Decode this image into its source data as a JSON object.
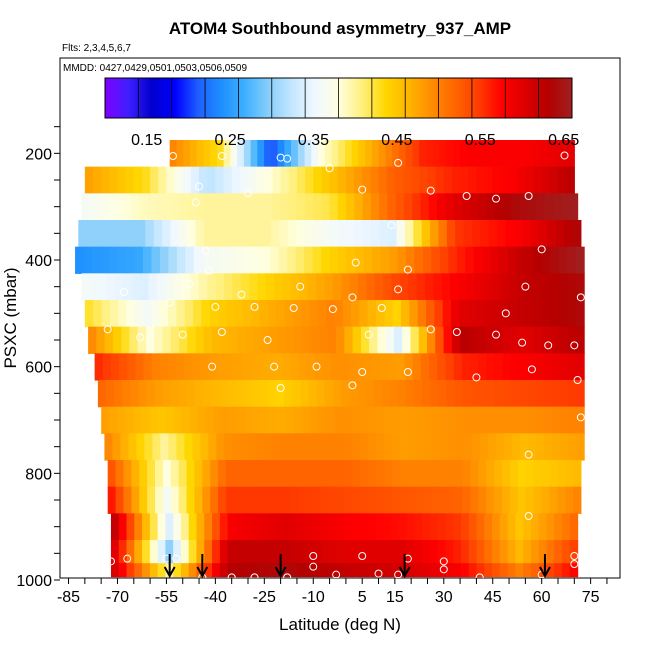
{
  "chart_data": {
    "type": "heatmap",
    "title": "ATOM4 Southbound asymmetry_937_AMP",
    "flights_label": "Flts: 2,3,4,5,6,7",
    "dates_label": "MMDD: 0427,0429,0501,0503,0506,0509",
    "xlabel": "Latitude (deg N)",
    "ylabel": "PSXC (mbar)",
    "xlim": [
      -87,
      84
    ],
    "ylim": [
      1000,
      100
    ],
    "x_ticks": [
      -85,
      -70,
      -55,
      -40,
      -25,
      -10,
      5,
      15,
      30,
      45,
      60,
      75
    ],
    "y_ticks": [
      200,
      400,
      600,
      800,
      1000
    ],
    "colorbar": {
      "range": [
        0.1,
        0.66
      ],
      "ticks": [
        0.15,
        0.25,
        0.35,
        0.45,
        0.55,
        0.65
      ],
      "tick_labels": [
        "0.15",
        "0.25",
        "0.35",
        "0.45",
        "0.55",
        "0.65"
      ],
      "colors": [
        "#7f00ff",
        "#3f1fff",
        "#0000cd",
        "#0000ff",
        "#1e5fff",
        "#1e90ff",
        "#3fb0ff",
        "#87cefa",
        "#c3e6ff",
        "#f0f8ff",
        "#ffffe0",
        "#fff07f",
        "#ffd700",
        "#ffb400",
        "#ff8c00",
        "#ff6400",
        "#ff3c00",
        "#ff0000",
        "#dc0000",
        "#b40000",
        "#a02020"
      ]
    },
    "layers": [
      {
        "p": 200,
        "lat_min": -54,
        "lat_max": 70,
        "values": [
          0.5,
          0.43,
          0.2,
          0.38,
          0.47,
          0.56,
          0.58,
          0.58,
          0.6
        ]
      },
      {
        "p": 250,
        "lat_min": -80,
        "lat_max": 70,
        "values": [
          0.48,
          0.43,
          0.32,
          0.38,
          0.45,
          0.52,
          0.56,
          0.58,
          0.63
        ]
      },
      {
        "p": 300,
        "lat_min": -81,
        "lat_max": 71,
        "values": [
          0.36,
          0.39,
          0.4,
          0.4,
          0.42,
          0.52,
          0.6,
          0.64,
          0.66
        ]
      },
      {
        "p": 350,
        "lat_min": -82,
        "lat_max": 72,
        "values": [
          0.3,
          0.3,
          0.4,
          0.4,
          0.36,
          0.34,
          0.55,
          0.58,
          0.64
        ]
      },
      {
        "p": 400,
        "lat_min": -83,
        "lat_max": 73,
        "values": [
          0.24,
          0.26,
          0.36,
          0.38,
          0.44,
          0.48,
          0.56,
          0.62,
          0.66
        ]
      },
      {
        "p": 450,
        "lat_min": -81,
        "lat_max": 73,
        "values": [
          0.36,
          0.34,
          0.4,
          0.44,
          0.48,
          0.54,
          0.58,
          0.62,
          0.64
        ]
      },
      {
        "p": 500,
        "lat_min": -80,
        "lat_max": 73,
        "values": [
          0.43,
          0.36,
          0.44,
          0.47,
          0.5,
          0.44,
          0.6,
          0.62,
          0.64
        ]
      },
      {
        "p": 550,
        "lat_min": -79,
        "lat_max": 73,
        "values": [
          0.5,
          0.38,
          0.46,
          0.48,
          0.5,
          0.34,
          0.63,
          0.6,
          0.63
        ]
      },
      {
        "p": 600,
        "lat_min": -77,
        "lat_max": 73,
        "values": [
          0.56,
          0.5,
          0.48,
          0.47,
          0.49,
          0.48,
          0.56,
          0.58,
          0.6
        ]
      },
      {
        "p": 650,
        "lat_min": -76,
        "lat_max": 73,
        "values": [
          0.52,
          0.48,
          0.46,
          0.44,
          0.48,
          0.5,
          0.53,
          0.54,
          0.55
        ]
      },
      {
        "p": 700,
        "lat_min": -75,
        "lat_max": 73,
        "values": [
          0.48,
          0.45,
          0.48,
          0.47,
          0.49,
          0.48,
          0.49,
          0.49,
          0.5
        ]
      },
      {
        "p": 750,
        "lat_min": -74,
        "lat_max": 73,
        "values": [
          0.5,
          0.4,
          0.49,
          0.5,
          0.5,
          0.48,
          0.49,
          0.46,
          0.48
        ]
      },
      {
        "p": 800,
        "lat_min": -73,
        "lat_max": 72,
        "values": [
          0.54,
          0.38,
          0.52,
          0.52,
          0.52,
          0.5,
          0.5,
          0.44,
          0.46
        ]
      },
      {
        "p": 850,
        "lat_min": -73,
        "lat_max": 72,
        "values": [
          0.58,
          0.36,
          0.55,
          0.55,
          0.54,
          0.53,
          0.52,
          0.45,
          0.5
        ]
      },
      {
        "p": 900,
        "lat_min": -72,
        "lat_max": 71,
        "values": [
          0.64,
          0.34,
          0.58,
          0.6,
          0.58,
          0.57,
          0.55,
          0.45,
          0.52
        ]
      },
      {
        "p": 950,
        "lat_min": -72,
        "lat_max": 71,
        "values": [
          0.62,
          0.3,
          0.62,
          0.62,
          0.6,
          0.6,
          0.56,
          0.46,
          0.55
        ]
      },
      {
        "p": 987,
        "lat_min": -72,
        "lat_max": 71,
        "values": [
          0.62,
          0.4,
          0.63,
          0.64,
          0.62,
          0.61,
          0.58,
          0.5,
          0.58
        ]
      }
    ],
    "points": [
      {
        "lat": -53,
        "p": 205
      },
      {
        "lat": -38,
        "p": 205
      },
      {
        "lat": -20,
        "p": 208
      },
      {
        "lat": -18,
        "p": 210
      },
      {
        "lat": -5,
        "p": 228
      },
      {
        "lat": 16,
        "p": 218
      },
      {
        "lat": 67,
        "p": 204
      },
      {
        "lat": -45,
        "p": 262
      },
      {
        "lat": -30,
        "p": 275
      },
      {
        "lat": 5,
        "p": 268
      },
      {
        "lat": 26,
        "p": 270
      },
      {
        "lat": 37,
        "p": 280
      },
      {
        "lat": 46,
        "p": 285
      },
      {
        "lat": 56,
        "p": 280
      },
      {
        "lat": -46,
        "p": 292
      },
      {
        "lat": 14,
        "p": 335
      },
      {
        "lat": -43,
        "p": 383
      },
      {
        "lat": 60,
        "p": 380
      },
      {
        "lat": -42,
        "p": 420
      },
      {
        "lat": 3,
        "p": 405
      },
      {
        "lat": 19,
        "p": 418
      },
      {
        "lat": -68,
        "p": 460
      },
      {
        "lat": -48,
        "p": 445
      },
      {
        "lat": -32,
        "p": 465
      },
      {
        "lat": -14,
        "p": 450
      },
      {
        "lat": 2,
        "p": 470
      },
      {
        "lat": 16,
        "p": 455
      },
      {
        "lat": 55,
        "p": 450
      },
      {
        "lat": 72,
        "p": 470
      },
      {
        "lat": -54,
        "p": 480
      },
      {
        "lat": -40,
        "p": 488
      },
      {
        "lat": -28,
        "p": 488
      },
      {
        "lat": -16,
        "p": 490
      },
      {
        "lat": -4,
        "p": 492
      },
      {
        "lat": 11,
        "p": 490
      },
      {
        "lat": 49,
        "p": 500
      },
      {
        "lat": -73,
        "p": 530
      },
      {
        "lat": -63,
        "p": 545
      },
      {
        "lat": -50,
        "p": 540
      },
      {
        "lat": -38,
        "p": 535
      },
      {
        "lat": -24,
        "p": 550
      },
      {
        "lat": 7,
        "p": 540
      },
      {
        "lat": 26,
        "p": 530
      },
      {
        "lat": 34,
        "p": 535
      },
      {
        "lat": 46,
        "p": 540
      },
      {
        "lat": 54,
        "p": 555
      },
      {
        "lat": 62,
        "p": 560
      },
      {
        "lat": 70,
        "p": 560
      },
      {
        "lat": -41,
        "p": 600
      },
      {
        "lat": -22,
        "p": 600
      },
      {
        "lat": -9,
        "p": 600
      },
      {
        "lat": 5,
        "p": 610
      },
      {
        "lat": 19,
        "p": 610
      },
      {
        "lat": 40,
        "p": 620
      },
      {
        "lat": 57,
        "p": 605
      },
      {
        "lat": 71,
        "p": 625
      },
      {
        "lat": -20,
        "p": 640
      },
      {
        "lat": 2,
        "p": 635
      },
      {
        "lat": 72,
        "p": 695
      },
      {
        "lat": 56,
        "p": 765
      },
      {
        "lat": 56,
        "p": 880
      },
      {
        "lat": 70,
        "p": 955
      },
      {
        "lat": 70,
        "p": 970
      },
      {
        "lat": -72,
        "p": 965
      },
      {
        "lat": -67,
        "p": 960
      },
      {
        "lat": -55,
        "p": 960
      },
      {
        "lat": -52,
        "p": 960
      },
      {
        "lat": -10,
        "p": 955
      },
      {
        "lat": -10,
        "p": 975
      },
      {
        "lat": 5,
        "p": 955
      },
      {
        "lat": 19,
        "p": 960
      },
      {
        "lat": 30,
        "p": 965
      },
      {
        "lat": 30,
        "p": 980
      },
      {
        "lat": -44,
        "p": 995
      },
      {
        "lat": -35,
        "p": 995
      },
      {
        "lat": -28,
        "p": 995
      },
      {
        "lat": -18,
        "p": 995
      },
      {
        "lat": -3,
        "p": 990
      },
      {
        "lat": 10,
        "p": 988
      },
      {
        "lat": 16,
        "p": 990
      },
      {
        "lat": 41,
        "p": 995
      },
      {
        "lat": 60,
        "p": 990
      }
    ],
    "arrows": [
      -54,
      -44,
      -20,
      18,
      61
    ]
  }
}
